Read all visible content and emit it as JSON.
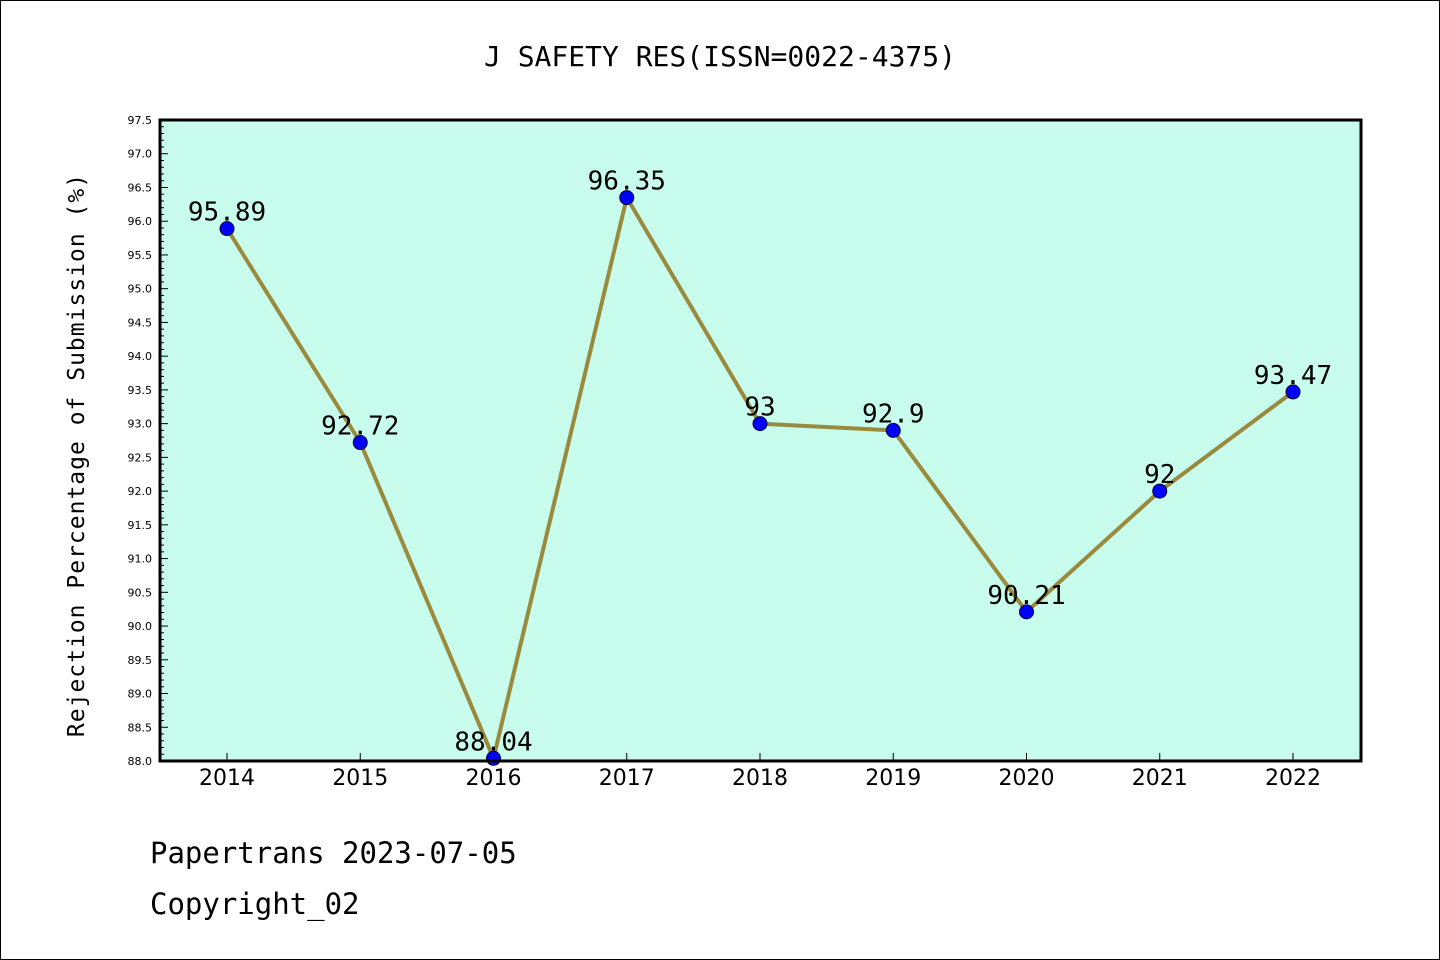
{
  "chart_data": {
    "type": "line",
    "title": "J SAFETY RES(ISSN=0022-4375)",
    "xlabel": "",
    "ylabel": "Rejection Percentage of Submission (%)",
    "categories": [
      "2014",
      "2015",
      "2016",
      "2017",
      "2018",
      "2019",
      "2020",
      "2021",
      "2022"
    ],
    "series": [
      {
        "values": [
          95.89,
          92.72,
          88.04,
          96.35,
          93,
          92.9,
          90.21,
          92,
          93.47
        ],
        "labels": [
          "95.89",
          "92.72",
          "88.04",
          "96.35",
          "93",
          "92.9",
          "90.21",
          "92",
          "93.47"
        ]
      }
    ],
    "ylim": [
      88.0,
      97.5
    ],
    "yticks": [
      "88.0",
      "88.5",
      "89.0",
      "89.5",
      "90.0",
      "90.5",
      "91.0",
      "91.5",
      "92.0",
      "92.5",
      "93.0",
      "93.5",
      "94.0",
      "94.5",
      "95.0",
      "95.5",
      "96.0",
      "96.5",
      "97.0",
      "97.5"
    ],
    "grid": false,
    "colors": {
      "plot_background": "#c8fcec",
      "line": "#9a8a3e",
      "marker": "#0000ff"
    }
  },
  "footer": {
    "line1": "Papertrans 2023-07-05",
    "line2": "Copyright_02"
  }
}
